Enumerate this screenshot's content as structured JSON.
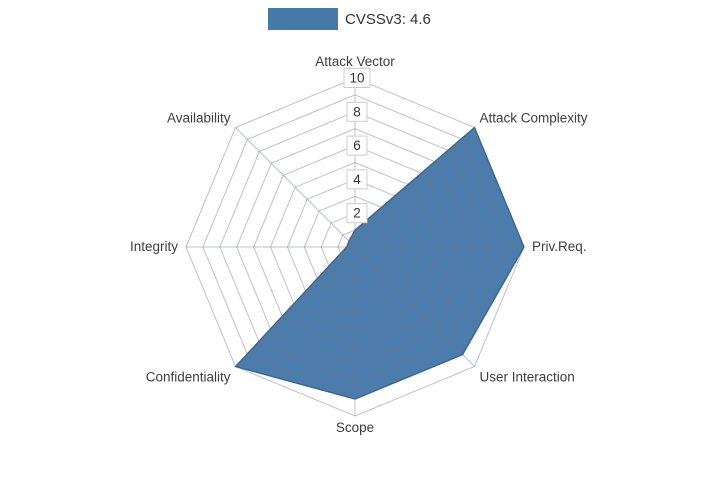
{
  "legend": {
    "label": "CVSSv3: 4.6",
    "swatch_color": "#4678a8"
  },
  "chart_data": {
    "type": "radar",
    "title": "CVSSv3: 4.6",
    "categories": [
      "Attack Vector",
      "Attack Complexity",
      "Priv.Req.",
      "User Interaction",
      "Scope",
      "Confidentiality",
      "Integrity",
      "Availability"
    ],
    "series": [
      {
        "name": "CVSSv3: 4.6",
        "values": [
          1,
          10,
          10,
          9,
          9,
          10,
          0.5,
          0.5
        ]
      }
    ],
    "radial_ticks": [
      2,
      4,
      6,
      8,
      10
    ],
    "rlim": [
      0,
      10
    ],
    "grid": true,
    "grid_rings": 10,
    "legend_position": "top-center",
    "colors": {
      "fill": "#4678a8",
      "stroke": "#38638f",
      "grid": "rgba(108,118,132,0.45)",
      "tick_text": "#333333",
      "label_text": "#3d3d3d",
      "tick_box_border": "#cccccc"
    }
  }
}
